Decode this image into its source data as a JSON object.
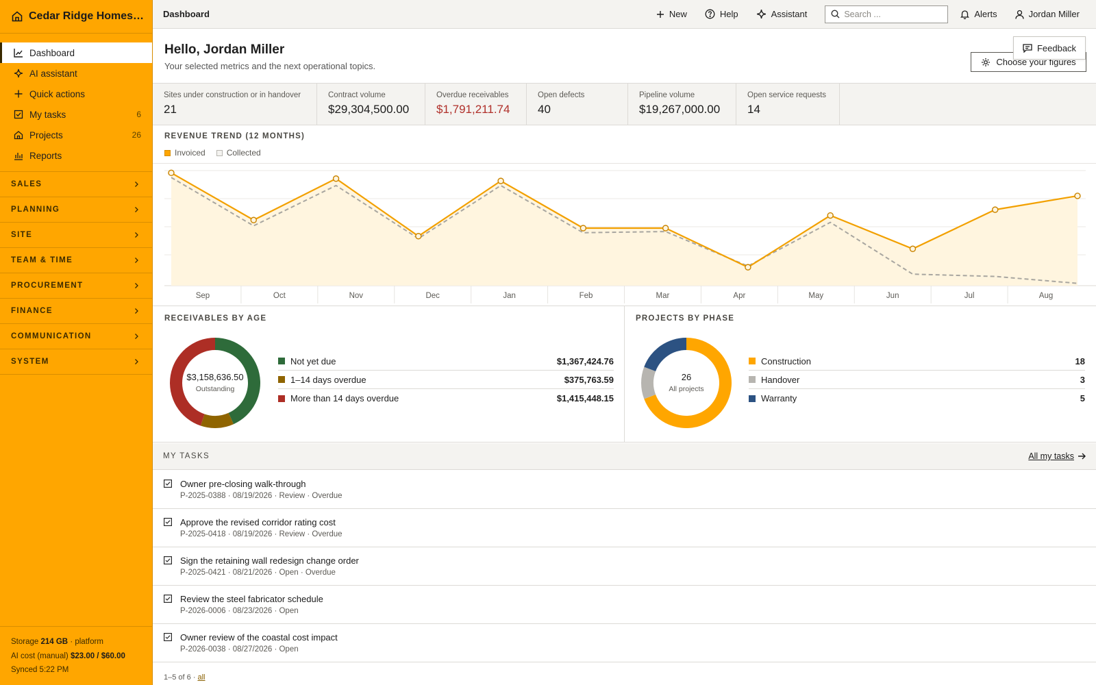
{
  "app": {
    "brand": "Cedar Ridge Homes L...",
    "accent": "#ffa600"
  },
  "sidebar": {
    "items": [
      {
        "label": "Dashboard",
        "icon": "line-chart-icon",
        "count": ""
      },
      {
        "label": "AI assistant",
        "icon": "sparkle-icon",
        "count": ""
      },
      {
        "label": "Quick actions",
        "icon": "plus-icon",
        "count": ""
      },
      {
        "label": "My tasks",
        "icon": "checkbox-icon",
        "count": "6"
      },
      {
        "label": "Projects",
        "icon": "house-icon",
        "count": "26"
      },
      {
        "label": "Reports",
        "icon": "bar-chart-icon",
        "count": ""
      }
    ],
    "sections": [
      "SALES",
      "PLANNING",
      "SITE",
      "TEAM & TIME",
      "PROCUREMENT",
      "FINANCE",
      "COMMUNICATION",
      "SYSTEM"
    ],
    "footer": {
      "storage_label": "Storage",
      "storage_value": "214 GB",
      "storage_suffix": "· platform",
      "ai_label": "AI cost (manual)",
      "ai_value": "$23.00 / $60.00",
      "synced": "Synced 5:22 PM"
    }
  },
  "topbar": {
    "breadcrumb": "Dashboard",
    "new_label": "New",
    "help_label": "Help",
    "assistant_label": "Assistant",
    "search_placeholder": "Search ...",
    "alerts_label": "Alerts",
    "user_label": "Jordan Miller"
  },
  "header": {
    "greeting": "Hello, Jordan Miller",
    "subtitle": "Your selected metrics and the next operational topics.",
    "feedback_label": "Feedback",
    "choose_label": "Choose your figures"
  },
  "kpis": [
    {
      "label": "Sites under construction or in handover",
      "value": "21",
      "danger": false
    },
    {
      "label": "Contract volume",
      "value": "$29,304,500.00",
      "danger": false
    },
    {
      "label": "Overdue receivables",
      "value": "$1,791,211.74",
      "danger": true
    },
    {
      "label": "Open defects",
      "value": "40",
      "danger": false
    },
    {
      "label": "Pipeline volume",
      "value": "$19,267,000.00",
      "danger": false
    },
    {
      "label": "Open service requests",
      "value": "14",
      "danger": false
    }
  ],
  "revenue": {
    "title": "REVENUE TREND (12 MONTHS)",
    "legend": [
      {
        "label": "Invoiced",
        "color": "#ffa600"
      },
      {
        "label": "Collected",
        "color": "#e6e4e0"
      }
    ]
  },
  "chart_data": {
    "type": "line",
    "categories": [
      "Sep",
      "Oct",
      "Nov",
      "Dec",
      "Jan",
      "Feb",
      "Mar",
      "Apr",
      "May",
      "Jun",
      "Jul",
      "Aug"
    ],
    "series": [
      {
        "name": "Invoiced",
        "values": [
          0.98,
          0.57,
          0.93,
          0.43,
          0.91,
          0.5,
          0.5,
          0.16,
          0.61,
          0.32,
          0.66,
          0.78
        ]
      },
      {
        "name": "Collected",
        "values": [
          0.94,
          0.52,
          0.87,
          0.41,
          0.87,
          0.46,
          0.47,
          0.17,
          0.55,
          0.1,
          0.08,
          0.02
        ]
      }
    ],
    "ylim": [
      0,
      1
    ],
    "grid": true
  },
  "receivables": {
    "title": "RECEIVABLES BY AGE",
    "center_value": "$3,158,636.50",
    "center_label": "Outstanding",
    "rows": [
      {
        "label": "Not yet due",
        "value": "$1,367,424.76",
        "amount": 1367424.76,
        "color": "#2e6b3a"
      },
      {
        "label": "1–14 days overdue",
        "value": "$375,763.59",
        "amount": 375763.59,
        "color": "#8f6400"
      },
      {
        "label": "More than 14 days overdue",
        "value": "$1,415,448.15",
        "amount": 1415448.15,
        "color": "#ad2e25"
      }
    ]
  },
  "phases": {
    "title": "PROJECTS BY PHASE",
    "center_value": "26",
    "center_label": "All projects",
    "rows": [
      {
        "label": "Construction",
        "value": "18",
        "amount": 18,
        "color": "#ffa600"
      },
      {
        "label": "Handover",
        "value": "3",
        "amount": 3,
        "color": "#b7b5b0"
      },
      {
        "label": "Warranty",
        "value": "5",
        "amount": 5,
        "color": "#2c5282"
      }
    ]
  },
  "tasks": {
    "title": "MY TASKS",
    "all_label": "All my tasks",
    "items": [
      {
        "title": "Owner pre-closing walk-through",
        "meta": "P-2025-0388 · 08/19/2026 · Review · Overdue"
      },
      {
        "title": "Approve the revised corridor rating cost",
        "meta": "P-2025-0418 · 08/19/2026 · Review · Overdue"
      },
      {
        "title": "Sign the retaining wall redesign change order",
        "meta": "P-2025-0421 · 08/21/2026 · Open · Overdue"
      },
      {
        "title": "Review the steel fabricator schedule",
        "meta": "P-2026-0006 · 08/23/2026 · Open"
      },
      {
        "title": "Owner review of the coastal cost impact",
        "meta": "P-2026-0038 · 08/27/2026 · Open"
      }
    ],
    "pager_text": "1–5 of 6 ·",
    "pager_link": "all"
  }
}
